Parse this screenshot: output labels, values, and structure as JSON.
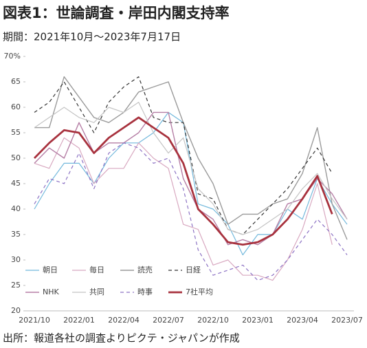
{
  "chart_data": {
    "type": "line",
    "title": "図表1：世論調査・岸田内閣支持率",
    "subtitle": "期間：2021年10月～2023年7月17日",
    "source": "出所：報道各社の調査よりピクテ・ジャパンが作成",
    "categories": [
      "2021/10",
      null,
      null,
      "2022/01",
      null,
      null,
      "2022/04",
      null,
      null,
      "2022/07",
      null,
      null,
      "2022/10",
      null,
      null,
      "2023/01",
      null,
      null,
      "2023/04",
      null,
      null,
      "2023/07"
    ],
    "ylim": [
      20,
      70
    ],
    "yticks": [
      20,
      25,
      30,
      35,
      40,
      45,
      50,
      55,
      60,
      65,
      {
        "value": 70,
        "label": "70%"
      }
    ],
    "grid": false,
    "series": [
      {
        "name": "朝日",
        "color": "#72b8dc",
        "dashed": false,
        "width": 1.2,
        "values": [
          40,
          45,
          49,
          49,
          45,
          50,
          53,
          53,
          55,
          59,
          57,
          41,
          40,
          37,
          31,
          35,
          35,
          40,
          38,
          46,
          41,
          37
        ]
      },
      {
        "name": "毎日",
        "color": "#d8a8c0",
        "dashed": false,
        "width": 1.2,
        "values": [
          49,
          48,
          54,
          52,
          45,
          48,
          48,
          53,
          50,
          48,
          37,
          36,
          29,
          30,
          27,
          27,
          26,
          30,
          36,
          45,
          33,
          null
        ]
      },
      {
        "name": "読売",
        "color": "#9a9a9a",
        "dashed": false,
        "width": 1.4,
        "values": [
          56,
          56,
          66,
          62,
          58,
          57,
          59,
          63,
          64,
          65,
          57,
          50,
          45,
          37,
          39,
          39,
          41,
          42,
          47,
          56,
          41,
          34
        ]
      },
      {
        "name": "日経",
        "color": "#333333",
        "dashed": true,
        "width": 1.2,
        "values": [
          59,
          61,
          65,
          60,
          55,
          61,
          64,
          66,
          58,
          57,
          57,
          43,
          42,
          36,
          35,
          38,
          41,
          44,
          48,
          52,
          47,
          null
        ]
      },
      {
        "name": "NHK",
        "color": "#b57ea5",
        "dashed": false,
        "width": 1.4,
        "values": [
          49,
          52,
          50,
          57,
          51,
          53,
          53,
          55,
          59,
          59,
          46,
          40,
          38,
          33,
          34,
          33,
          35,
          41,
          42,
          46,
          43,
          38
        ]
      },
      {
        "name": "共同",
        "color": "#c4c4c4",
        "dashed": false,
        "width": 1.2,
        "values": [
          56,
          58,
          60,
          58,
          57,
          60,
          59,
          61,
          55,
          51,
          54,
          44,
          41,
          36,
          35,
          36,
          38,
          40,
          44,
          47,
          42,
          38
        ]
      },
      {
        "name": "時事",
        "color": "#8c72c4",
        "dashed": true,
        "width": 1.2,
        "values": [
          41,
          46,
          45,
          51,
          44,
          51,
          53,
          52,
          49,
          50,
          44,
          32,
          27,
          28,
          29,
          26,
          27,
          30,
          34,
          38,
          35,
          31
        ]
      },
      {
        "name": "7社平均",
        "color": "#a8323e",
        "dashed": false,
        "width": 2.8,
        "values": [
          50,
          53,
          55.5,
          55,
          51,
          54,
          56,
          58,
          56,
          54,
          49,
          40,
          37,
          33.5,
          33,
          33.5,
          35,
          38,
          42,
          46.5,
          39,
          null
        ]
      }
    ]
  }
}
